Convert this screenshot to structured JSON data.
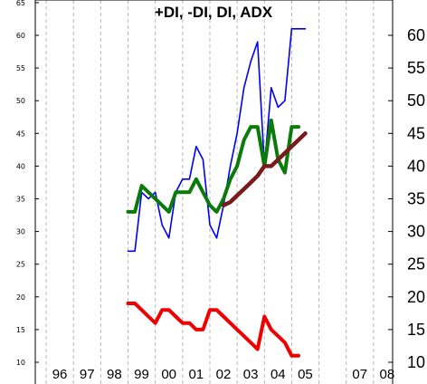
{
  "chart_data": {
    "type": "line",
    "title": "+DI, -DI, DI, ADX",
    "xlabel": "",
    "ylabel": "",
    "x_tick_labels": [
      "96",
      "97",
      "98",
      "99",
      "00",
      "01",
      "02",
      "03",
      "04",
      "05",
      "07",
      "08"
    ],
    "x_tick_years": [
      1996,
      1997,
      1998,
      1999,
      2000,
      2001,
      2002,
      2003,
      2004,
      2005,
      2007,
      2008
    ],
    "xlim": [
      1995.6,
      2008.7
    ],
    "ylim": [
      5,
      65
    ],
    "left_y_ticks": [
      10,
      15,
      20,
      25,
      30,
      35,
      40,
      45,
      50,
      55,
      60,
      65
    ],
    "right_y_ticks": [
      10,
      15,
      20,
      25,
      30,
      35,
      40,
      45,
      50,
      55,
      60
    ],
    "grid": "vertical dashed",
    "series": [
      {
        "color": "#0000ee",
        "x": [
          1999.0,
          1999.25,
          1999.5,
          1999.75,
          2000.0,
          2000.25,
          2000.5,
          2000.75,
          2001.0,
          2001.25,
          2001.5,
          2001.75,
          2002.0,
          2002.25,
          2002.5,
          2002.75,
          2003.0,
          2003.25,
          2003.5,
          2003.75,
          2004.0,
          2004.25,
          2004.5,
          2004.75,
          2005.0,
          2005.25,
          2005.5
        ],
        "values": [
          27,
          27,
          36,
          35,
          36,
          31,
          29,
          36,
          38,
          38,
          43,
          41,
          31,
          29,
          34,
          40,
          45,
          52,
          56,
          59,
          40,
          52,
          49,
          50,
          61,
          61,
          61
        ]
      },
      {
        "color": "#0a7a0a",
        "x": [
          1999.0,
          1999.25,
          1999.5,
          1999.75,
          2000.0,
          2000.25,
          2000.5,
          2000.75,
          2001.0,
          2001.25,
          2001.5,
          2001.75,
          2002.0,
          2002.25,
          2002.5,
          2002.75,
          2003.0,
          2003.25,
          2003.5,
          2003.75,
          2004.0,
          2004.25,
          2004.5,
          2004.75,
          2005.0,
          2005.25
        ],
        "values": [
          33,
          33,
          37,
          36,
          35,
          34,
          33,
          36,
          36,
          36,
          38,
          36,
          34,
          33,
          35,
          38,
          40,
          44,
          46,
          46,
          40,
          47,
          41,
          39,
          46,
          46
        ]
      },
      {
        "color": "#ee0000",
        "x": [
          1999.0,
          1999.25,
          1999.5,
          1999.75,
          2000.0,
          2000.25,
          2000.5,
          2000.75,
          2001.0,
          2001.25,
          2001.5,
          2001.75,
          2002.0,
          2002.25,
          2002.5,
          2002.75,
          2003.0,
          2003.25,
          2003.5,
          2003.75,
          2004.0,
          2004.25,
          2004.5,
          2004.75,
          2005.0,
          2005.25
        ],
        "values": [
          19,
          19,
          18,
          17,
          16,
          18,
          18,
          17,
          16,
          16,
          15,
          15,
          18,
          18,
          17,
          16,
          15,
          14,
          13,
          12,
          17,
          15,
          14,
          13,
          11,
          11
        ]
      },
      {
        "color": "#7a1a1a",
        "x": [
          2002.5,
          2002.75,
          2003.0,
          2003.25,
          2003.5,
          2003.75,
          2004.0,
          2004.25,
          2004.5,
          2004.75,
          2005.0,
          2005.25,
          2005.5
        ],
        "values": [
          34,
          34.5,
          35.5,
          36.5,
          37.5,
          38.5,
          40,
          40,
          41,
          42,
          43,
          44,
          45
        ]
      }
    ]
  }
}
